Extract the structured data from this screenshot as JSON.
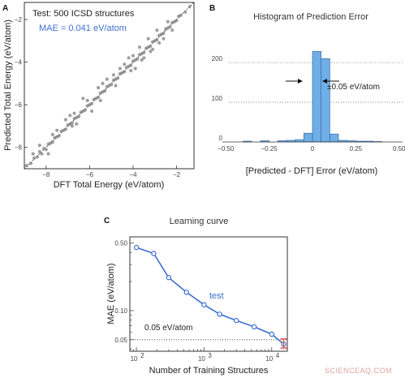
{
  "watermark": "SCIENCEAQ.COM",
  "chart_data": [
    {
      "panel": "A",
      "type": "scatter",
      "annotation": "Test: 500 ICSD structures",
      "mae_text": "MAE =  0.041 eV/atom",
      "xlabel": "DFT Total Energy (eV/atom)",
      "ylabel": "Predicted Total Energy (eV/atom)",
      "xlim": [
        -9.0,
        -1.2
      ],
      "ylim": [
        -9.0,
        -1.2
      ],
      "xticks": [
        -8,
        -6,
        -4,
        -2
      ],
      "yticks": [
        -8,
        -6,
        -4,
        -2
      ],
      "tick_labels": [
        "−8",
        "−6",
        "−4",
        "−2"
      ],
      "reference_line": "y = x (dotted)",
      "colors": {
        "points": "#7f7f7f",
        "mae": "#3d6fd0"
      },
      "points": [
        [
          -8.9,
          -8.85
        ],
        [
          -8.7,
          -8.75
        ],
        [
          -8.55,
          -8.5
        ],
        [
          -8.4,
          -8.45
        ],
        [
          -8.3,
          -8.2
        ],
        [
          -8.2,
          -8.3
        ],
        [
          -8.1,
          -8.05
        ],
        [
          -8.0,
          -8.1
        ],
        [
          -7.9,
          -7.85
        ],
        [
          -7.8,
          -7.8
        ],
        [
          -7.7,
          -7.75
        ],
        [
          -7.6,
          -7.55
        ],
        [
          -7.5,
          -7.5
        ],
        [
          -7.4,
          -7.45
        ],
        [
          -7.3,
          -7.25
        ],
        [
          -7.2,
          -7.2
        ],
        [
          -7.1,
          -7.15
        ],
        [
          -7.0,
          -6.95
        ],
        [
          -6.9,
          -6.9
        ],
        [
          -6.8,
          -6.85
        ],
        [
          -6.7,
          -6.65
        ],
        [
          -6.6,
          -6.6
        ],
        [
          -6.5,
          -6.55
        ],
        [
          -6.4,
          -6.35
        ],
        [
          -6.3,
          -6.3
        ],
        [
          -6.2,
          -6.25
        ],
        [
          -6.1,
          -6.05
        ],
        [
          -6.0,
          -6.0
        ],
        [
          -5.9,
          -5.95
        ],
        [
          -5.8,
          -5.75
        ],
        [
          -5.7,
          -5.7
        ],
        [
          -5.6,
          -5.65
        ],
        [
          -5.5,
          -5.45
        ],
        [
          -5.4,
          -5.4
        ],
        [
          -5.3,
          -5.35
        ],
        [
          -5.2,
          -5.15
        ],
        [
          -5.1,
          -5.1
        ],
        [
          -5.0,
          -5.05
        ],
        [
          -4.9,
          -4.85
        ],
        [
          -4.8,
          -4.8
        ],
        [
          -4.7,
          -4.75
        ],
        [
          -4.6,
          -4.55
        ],
        [
          -4.5,
          -4.5
        ],
        [
          -4.4,
          -4.45
        ],
        [
          -4.3,
          -4.25
        ],
        [
          -4.2,
          -4.2
        ],
        [
          -4.1,
          -4.15
        ],
        [
          -4.0,
          -3.95
        ],
        [
          -3.9,
          -3.9
        ],
        [
          -3.8,
          -3.85
        ],
        [
          -3.7,
          -3.65
        ],
        [
          -3.6,
          -3.6
        ],
        [
          -3.5,
          -3.55
        ],
        [
          -3.4,
          -3.35
        ],
        [
          -3.3,
          -3.3
        ],
        [
          -3.2,
          -3.25
        ],
        [
          -3.1,
          -3.05
        ],
        [
          -3.0,
          -3.0
        ],
        [
          -2.9,
          -2.95
        ],
        [
          -2.8,
          -2.75
        ],
        [
          -2.7,
          -2.7
        ],
        [
          -2.6,
          -2.65
        ],
        [
          -2.5,
          -2.45
        ],
        [
          -2.4,
          -2.4
        ],
        [
          -2.3,
          -2.35
        ],
        [
          -2.2,
          -2.15
        ],
        [
          -2.1,
          -2.1
        ],
        [
          -2.0,
          -2.05
        ],
        [
          -1.9,
          -1.85
        ],
        [
          -1.8,
          -1.8
        ],
        [
          -1.6,
          -1.65
        ],
        [
          -1.4,
          -1.4
        ],
        [
          -8.3,
          -7.9
        ],
        [
          -7.9,
          -8.3
        ],
        [
          -7.1,
          -6.7
        ],
        [
          -6.9,
          -6.5
        ],
        [
          -6.7,
          -6.4
        ],
        [
          -6.3,
          -5.7
        ],
        [
          -5.9,
          -6.3
        ],
        [
          -5.4,
          -5.0
        ],
        [
          -5.2,
          -4.8
        ],
        [
          -4.8,
          -5.1
        ],
        [
          -4.6,
          -4.3
        ],
        [
          -4.4,
          -4.1
        ],
        [
          -4.2,
          -3.8
        ],
        [
          -3.9,
          -4.3
        ],
        [
          -3.7,
          -3.3
        ],
        [
          -3.5,
          -3.8
        ],
        [
          -3.3,
          -2.9
        ],
        [
          -3.1,
          -3.4
        ],
        [
          -2.9,
          -2.5
        ],
        [
          -2.6,
          -2.9
        ],
        [
          -2.4,
          -2.1
        ],
        [
          -2.2,
          -2.5
        ],
        [
          -6.6,
          -6.9
        ],
        [
          -7.5,
          -7.2
        ],
        [
          -5.6,
          -5.2
        ],
        [
          -4.1,
          -4.4
        ],
        [
          -6.1,
          -5.8
        ],
        [
          -7.7,
          -7.4
        ],
        [
          -8.6,
          -8.3
        ],
        [
          -2.8,
          -3.1
        ],
        [
          -3.2,
          -3.5
        ],
        [
          -4.9,
          -4.6
        ],
        [
          -5.5,
          -5.8
        ],
        [
          -6.8,
          -7.0
        ],
        [
          -4.0,
          -3.7
        ],
        [
          -3.6,
          -3.9
        ]
      ]
    },
    {
      "panel": "B",
      "type": "bar",
      "title": "Histogram of Prediction Error",
      "xlabel": "[Predicted - DFT] Error (eV/atom)",
      "ylabel": "",
      "xlim": [
        -0.52,
        0.52
      ],
      "ylim": [
        0,
        235
      ],
      "xticks": [
        -0.5,
        -0.25,
        0,
        0.25,
        0.5
      ],
      "xtick_labels": [
        "−0.50",
        "−0.25",
        "0",
        "0.25",
        "0.50"
      ],
      "yticks": [
        0,
        100,
        200
      ],
      "ytick_labels": [
        "0",
        "100",
        "200"
      ],
      "grid": "horizontal dotted at y ticks",
      "bin_width": 0.05,
      "bins": [
        {
          "x0": -0.4,
          "value": 2
        },
        {
          "x0": -0.3,
          "value": 3
        },
        {
          "x0": -0.2,
          "value": 3
        },
        {
          "x0": -0.15,
          "value": 4
        },
        {
          "x0": -0.1,
          "value": 6
        },
        {
          "x0": -0.05,
          "value": 22
        },
        {
          "x0": 0.0,
          "value": 228
        },
        {
          "x0": 0.05,
          "value": 210
        },
        {
          "x0": 0.1,
          "value": 20
        },
        {
          "x0": 0.15,
          "value": 4
        },
        {
          "x0": 0.2,
          "value": 3
        },
        {
          "x0": 0.25,
          "value": 2
        },
        {
          "x0": 0.3,
          "value": 2
        },
        {
          "x0": 0.35,
          "value": 1
        }
      ],
      "annotation": "±0.05 eV/atom",
      "colors": {
        "bars": "#6faee6",
        "edge": "#2d5f9a"
      }
    },
    {
      "panel": "C",
      "type": "line",
      "title": "Learning curve",
      "xlabel": "Number of Training Structures",
      "ylabel": "MAE (eV/atom)",
      "xscale": "log",
      "yscale": "log",
      "xlim": [
        80,
        17000
      ],
      "ylim": [
        0.038,
        0.58
      ],
      "xticks": [
        100,
        1000,
        10000
      ],
      "yticks": [
        0.05,
        0.1,
        0.5
      ],
      "ytick_labels": [
        "0.05",
        "0.10",
        "0.50"
      ],
      "series": [
        {
          "name": "test",
          "x": [
            100,
            180,
            300,
            550,
            1000,
            1700,
            3000,
            5500,
            10000,
            15000
          ],
          "y": [
            0.45,
            0.39,
            0.22,
            0.155,
            0.115,
            0.092,
            0.079,
            0.068,
            0.057,
            0.045
          ]
        }
      ],
      "reference_line": {
        "value": 0.05,
        "label": "0.05 eV/atom"
      },
      "last_point_error": [
        0.041,
        0.051
      ],
      "colors": {
        "line": "#3d6fd0",
        "error": "#e0504d"
      }
    }
  ]
}
